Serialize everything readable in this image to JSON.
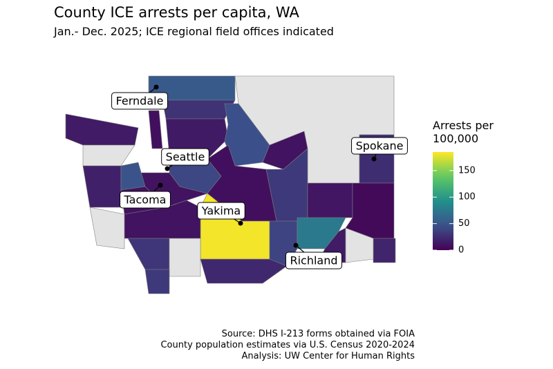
{
  "title": "County ICE arrests per capita, WA",
  "subtitle": "Jan.- Dec. 2025; ICE regional field offices indicated",
  "map": {
    "type": "choropleth",
    "counties": [
      {
        "value": null
      },
      {
        "value": 52
      },
      {
        "value": 28
      },
      {
        "value": 14
      },
      {
        "value": 45
      },
      {
        "value": 10
      },
      {
        "value": 32
      },
      {
        "value": 12
      },
      {
        "value": 25
      },
      {
        "value": 5
      },
      {
        "value": 40
      },
      {
        "value": 8
      },
      {
        "value": 10
      },
      {
        "value": 182
      },
      {
        "value": 38
      },
      {
        "value": 75
      },
      {
        "value": 15
      },
      {
        "value": 20
      },
      {
        "value": null
      },
      {
        "value": 15
      },
      {
        "value": null
      },
      {
        "value": 18
      },
      {
        "value": 48
      },
      {
        "value": 10
      },
      {
        "value": 10
      },
      {
        "value": null
      },
      {
        "value": 30
      },
      {
        "value": null
      },
      {
        "value": 32
      },
      {
        "value": 22
      },
      {
        "value": 8
      }
    ],
    "no_data_color": "#e3e3e3",
    "offices": [
      "Ferndale",
      "Seattle",
      "Tacoma",
      "Yakima",
      "Spokane",
      "Richland"
    ],
    "legend": {
      "title": "Arrests per 100,000",
      "lim": [
        0,
        185
      ],
      "ticks": [
        0,
        50,
        100,
        150
      ]
    }
  },
  "source": [
    "Source: DHS I-213 forms obtained via FOIA",
    "County population estimates via U.S. Census 2020-2024",
    "Analysis: UW Center for Human Rights"
  ]
}
